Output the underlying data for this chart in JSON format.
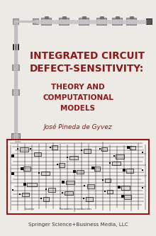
{
  "bg_color": "#ede9e4",
  "title_line1": "INTEGRATED CIRCUIT",
  "title_line2": "DEFECT-SENSITIVITY:",
  "subtitle_line1": "THEORY AND",
  "subtitle_line2": "COMPUTATIONAL",
  "subtitle_line3": "MODELS",
  "author": "José Pineda de Gyvez",
  "publisher": "Springer Science+Business Media, LLC",
  "title_color": "#8b1a1a",
  "subtitle_color": "#8b1a1a",
  "author_color": "#8b1a1a",
  "publisher_color": "#3a3a3a",
  "circuit_border_color": "#8b1a1a",
  "circuit_bg": "#f5f2ed",
  "rail_color": "#c8c8c8",
  "block_color": "#a8a8a8",
  "block_dark": "#707070",
  "vert_color": "#c0c0c0"
}
